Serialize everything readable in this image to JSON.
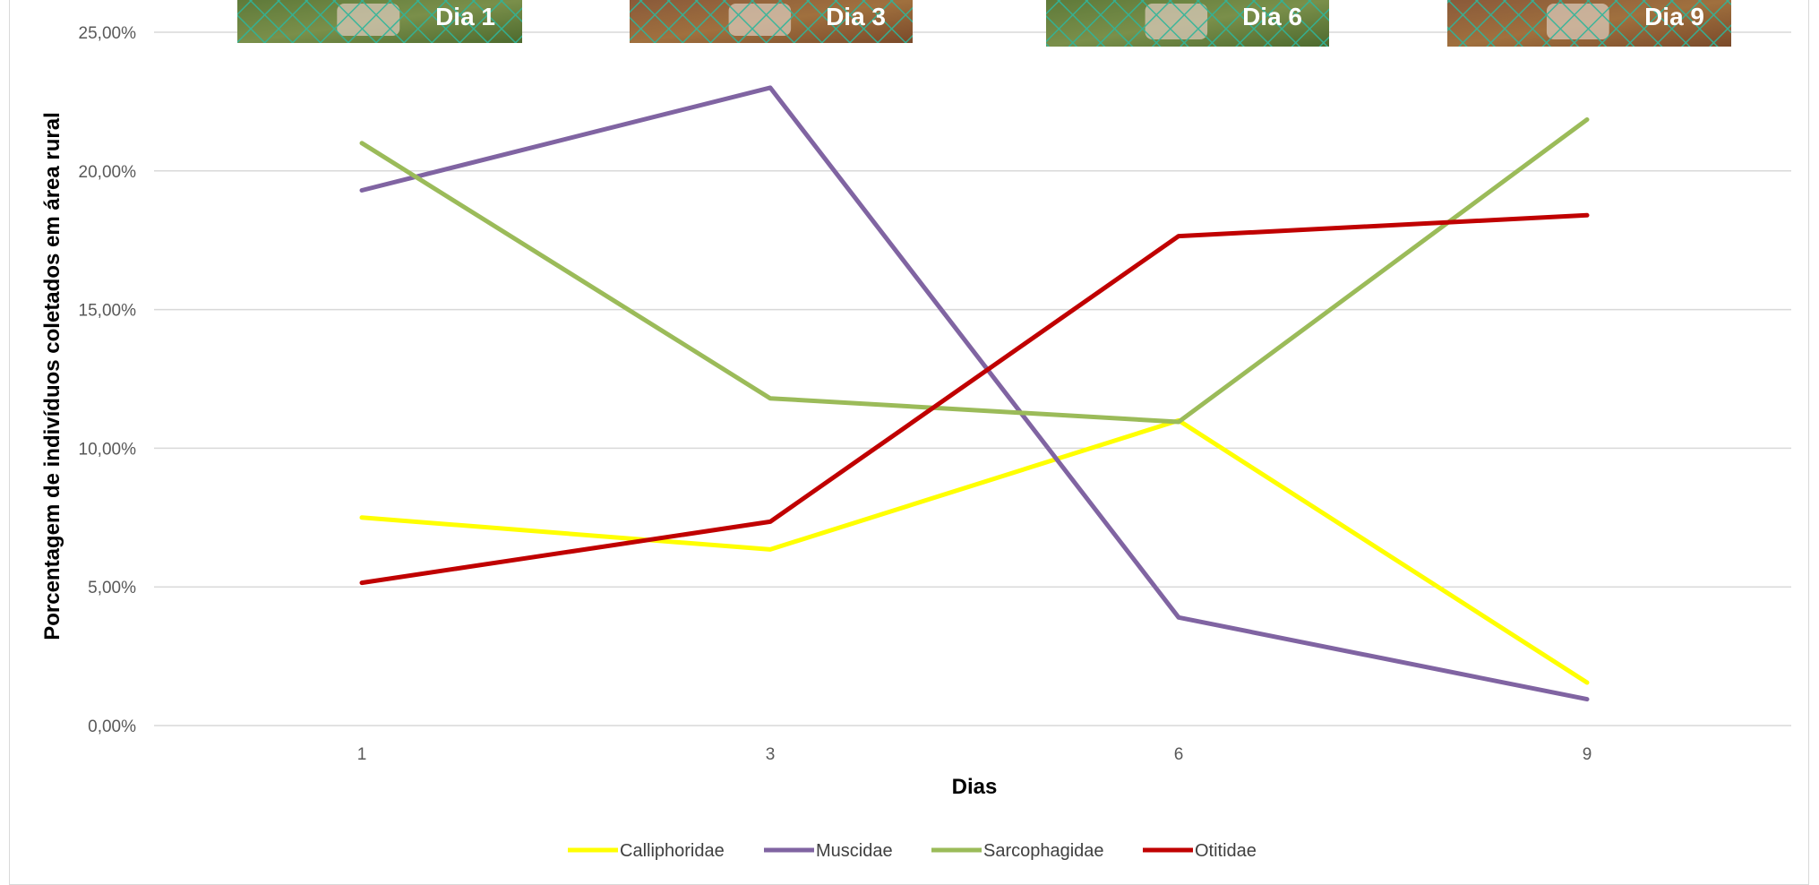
{
  "chart_data": {
    "type": "line",
    "title": "",
    "xlabel": "Dias",
    "ylabel": "Porcentagem de indivíduos coletados em área rural",
    "categories": [
      "1",
      "3",
      "6",
      "9"
    ],
    "ylim": [
      0,
      25
    ],
    "y_ticks": [
      "0,00%",
      "5,00%",
      "10,00%",
      "15,00%",
      "20,00%",
      "25,00%"
    ],
    "grid": true,
    "legend_position": "bottom",
    "series": [
      {
        "name": "Calliphoridae",
        "color": "#ffff00",
        "values": [
          7.5,
          6.35,
          11.0,
          1.55
        ]
      },
      {
        "name": "Muscidae",
        "color": "#8064a2",
        "values": [
          19.3,
          23.0,
          3.9,
          0.95
        ]
      },
      {
        "name": "Sarcophagidae",
        "color": "#9bbb59",
        "values": [
          21.0,
          11.8,
          10.95,
          21.85
        ]
      },
      {
        "name": "Otitidae",
        "color": "#c00000",
        "values": [
          5.15,
          7.35,
          17.65,
          18.4
        ]
      }
    ],
    "photos": [
      {
        "label": "Dia 1"
      },
      {
        "label": "Dia 3"
      },
      {
        "label": "Dia 6"
      },
      {
        "label": "Dia 9"
      }
    ]
  }
}
